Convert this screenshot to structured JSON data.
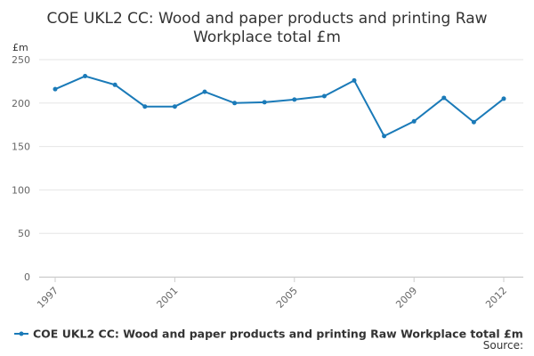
{
  "chart_data": {
    "type": "line",
    "title": "COE UKL2 CC: Wood and paper products and printing Raw Workplace total £m",
    "y_label": "£m",
    "source": "Source:",
    "x": [
      1997,
      1998,
      1999,
      2000,
      2001,
      2002,
      2003,
      2004,
      2005,
      2006,
      2007,
      2008,
      2009,
      2010,
      2011,
      2012
    ],
    "xlim": [
      1997,
      2012
    ],
    "xticks": [
      1997,
      2001,
      2005,
      2009,
      2012
    ],
    "ylim": [
      0,
      250
    ],
    "yticks": [
      0,
      50,
      100,
      150,
      200,
      250
    ],
    "grid": true,
    "legend": "bottom",
    "series": [
      {
        "name": "COE UKL2 CC: Wood and paper products and printing Raw Workplace total £m",
        "color": "#1a7ab8",
        "values": [
          216,
          231,
          221,
          196,
          196,
          213,
          200,
          201,
          204,
          208,
          226,
          162,
          179,
          206,
          178,
          205
        ]
      }
    ]
  }
}
